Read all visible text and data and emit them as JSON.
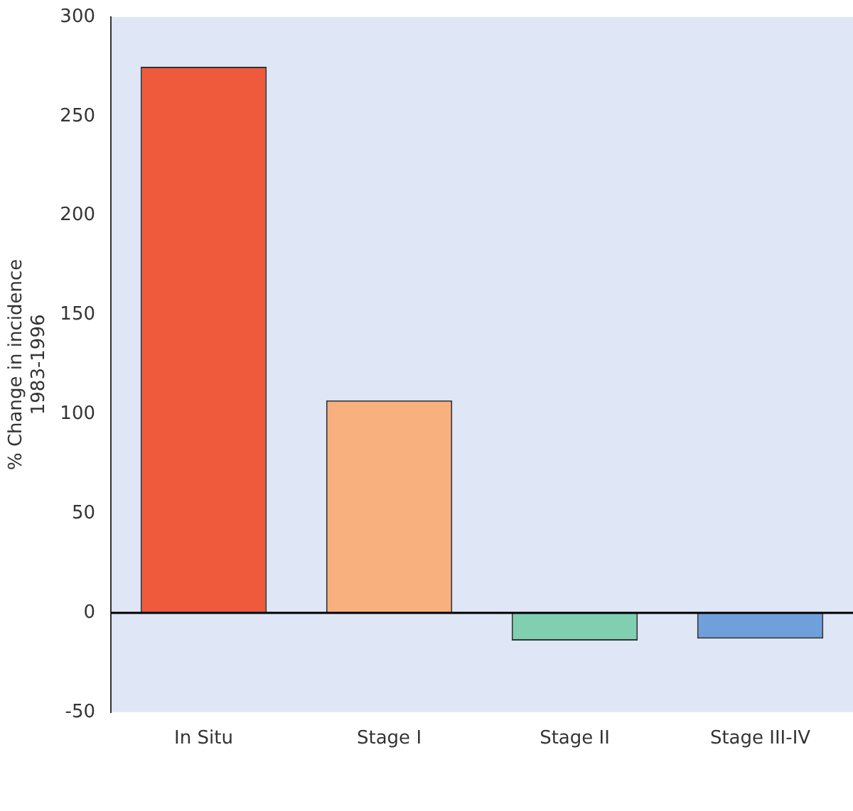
{
  "chart_data": {
    "type": "bar",
    "ylabel": "% Change in incidence\n1983-1996",
    "categories": [
      "In Situ",
      "Stage I",
      "Stage II",
      "Stage III-IV"
    ],
    "values": [
      275,
      107,
      -14,
      -13
    ],
    "colors": [
      "#f05a3c",
      "#f9b07f",
      "#7fcfb0",
      "#6fa0dc"
    ],
    "ylim": [
      -50,
      300
    ],
    "yticks": [
      -50,
      0,
      50,
      100,
      150,
      200,
      250,
      300
    ]
  }
}
